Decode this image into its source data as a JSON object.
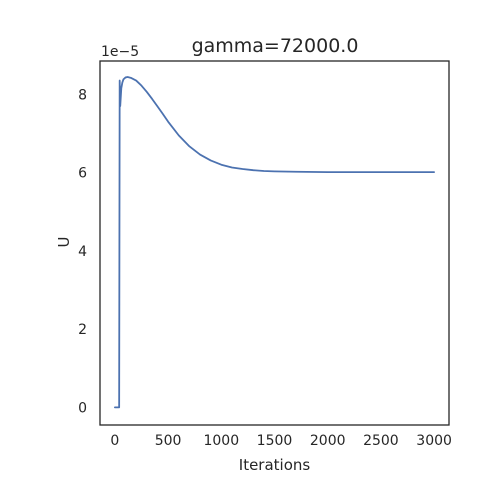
{
  "chart_data": {
    "type": "line",
    "title": "gamma=72000.0",
    "xlabel": "Iterations",
    "ylabel": "U",
    "y_offset_label": "1e−5",
    "xlim": [
      -140,
      3140
    ],
    "ylim": [
      -0.45,
      8.85
    ],
    "xticks": [
      0,
      500,
      1000,
      1500,
      2000,
      2500,
      3000
    ],
    "xtick_labels": [
      "0",
      "500",
      "1000",
      "1500",
      "2000",
      "2500",
      "3000"
    ],
    "yticks": [
      0,
      2,
      4,
      6,
      8
    ],
    "ytick_labels": [
      "0",
      "2",
      "4",
      "6",
      "8"
    ],
    "grid": false,
    "series": [
      {
        "color": "#4c72b0",
        "x": [
          0,
          40,
          45,
          50,
          60,
          70,
          80,
          100,
          120,
          150,
          200,
          250,
          300,
          350,
          400,
          450,
          500,
          600,
          700,
          800,
          900,
          1000,
          1100,
          1200,
          1300,
          1400,
          1500,
          1700,
          2000,
          2500,
          3000
        ],
        "y": [
          0.0,
          0.0,
          8.35,
          7.7,
          8.15,
          8.3,
          8.38,
          8.43,
          8.44,
          8.42,
          8.35,
          8.22,
          8.06,
          7.88,
          7.69,
          7.5,
          7.3,
          6.95,
          6.67,
          6.46,
          6.31,
          6.2,
          6.13,
          6.09,
          6.06,
          6.04,
          6.03,
          6.02,
          6.01,
          6.01,
          6.01
        ]
      }
    ]
  }
}
